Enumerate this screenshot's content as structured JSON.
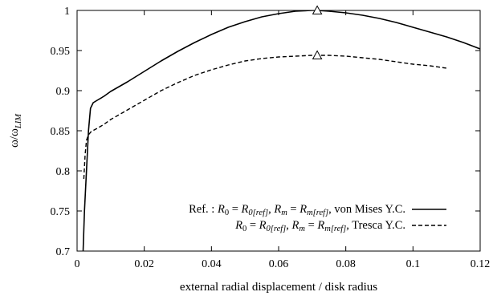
{
  "chart_data": {
    "type": "line",
    "xlabel": "external radial displacement / disk radius",
    "ylabel": {
      "base": "ω/ω",
      "sub": "LIM"
    },
    "xlim": [
      0,
      0.12
    ],
    "ylim": [
      0.7,
      1.0
    ],
    "x_ticks": [
      0,
      0.02,
      0.04,
      0.06,
      0.08,
      0.1,
      0.12
    ],
    "x_tick_labels": [
      "0",
      "0.02",
      "0.04",
      "0.06",
      "0.08",
      "0.1",
      "0.12"
    ],
    "y_ticks": [
      0.7,
      0.75,
      0.8,
      0.85,
      0.9,
      0.95,
      1.0
    ],
    "y_tick_labels": [
      "0.7",
      "0.75",
      "0.8",
      "0.85",
      "0.9",
      "0.95",
      "1"
    ],
    "grid": false,
    "legend_position": "bottom-right",
    "series": [
      {
        "style": "solid",
        "color": "#000000",
        "legend": {
          "prefix": "Ref. : ",
          "R0": "R",
          "R0_sub": "0",
          "eq": " = ",
          "R0ref": "R",
          "R0ref_sub": "0[ref]",
          "sep": ", ",
          "Rm": "R",
          "Rm_sub": "m",
          "eq2": " = ",
          "Rmref": "R",
          "Rmref_sub": "m[ref]",
          "suffix": ", von Mises Y.C."
        },
        "x": [
          0.0018,
          0.0022,
          0.0028,
          0.0034,
          0.004,
          0.0048,
          0.006,
          0.008,
          0.01,
          0.015,
          0.02,
          0.025,
          0.03,
          0.035,
          0.04,
          0.045,
          0.05,
          0.055,
          0.06,
          0.065,
          0.07,
          0.0715,
          0.075,
          0.08,
          0.085,
          0.09,
          0.095,
          0.1,
          0.105,
          0.11,
          0.115,
          0.12
        ],
        "values": [
          0.7,
          0.75,
          0.8,
          0.85,
          0.878,
          0.885,
          0.888,
          0.893,
          0.899,
          0.911,
          0.924,
          0.937,
          0.949,
          0.96,
          0.97,
          0.979,
          0.986,
          0.992,
          0.996,
          0.999,
          1.0,
          1.0,
          0.999,
          0.997,
          0.994,
          0.99,
          0.985,
          0.979,
          0.973,
          0.967,
          0.96,
          0.952
        ]
      },
      {
        "style": "dashed",
        "color": "#000000",
        "legend": {
          "prefix": "",
          "R0": "R",
          "R0_sub": "0",
          "eq": " = ",
          "R0ref": "R",
          "R0ref_sub": "0[ref]",
          "sep": ", ",
          "Rm": "R",
          "Rm_sub": "m",
          "eq2": " = ",
          "Rmref": "R",
          "Rmref_sub": "m[ref]",
          "suffix": ", Tresca Y.C."
        },
        "x": [
          0.002,
          0.0024,
          0.0028,
          0.0034,
          0.0042,
          0.006,
          0.008,
          0.01,
          0.015,
          0.02,
          0.025,
          0.03,
          0.035,
          0.04,
          0.045,
          0.05,
          0.055,
          0.06,
          0.065,
          0.07,
          0.0715,
          0.075,
          0.08,
          0.085,
          0.09,
          0.095,
          0.1,
          0.105,
          0.11
        ],
        "values": [
          0.79,
          0.82,
          0.838,
          0.845,
          0.849,
          0.853,
          0.858,
          0.864,
          0.876,
          0.888,
          0.9,
          0.91,
          0.919,
          0.926,
          0.932,
          0.937,
          0.94,
          0.942,
          0.943,
          0.944,
          0.944,
          0.944,
          0.943,
          0.941,
          0.939,
          0.936,
          0.933,
          0.931,
          0.928
        ]
      }
    ],
    "markers": [
      {
        "shape": "triangle",
        "x": 0.0715,
        "y": 1.0
      },
      {
        "shape": "triangle",
        "x": 0.0715,
        "y": 0.944
      }
    ]
  }
}
